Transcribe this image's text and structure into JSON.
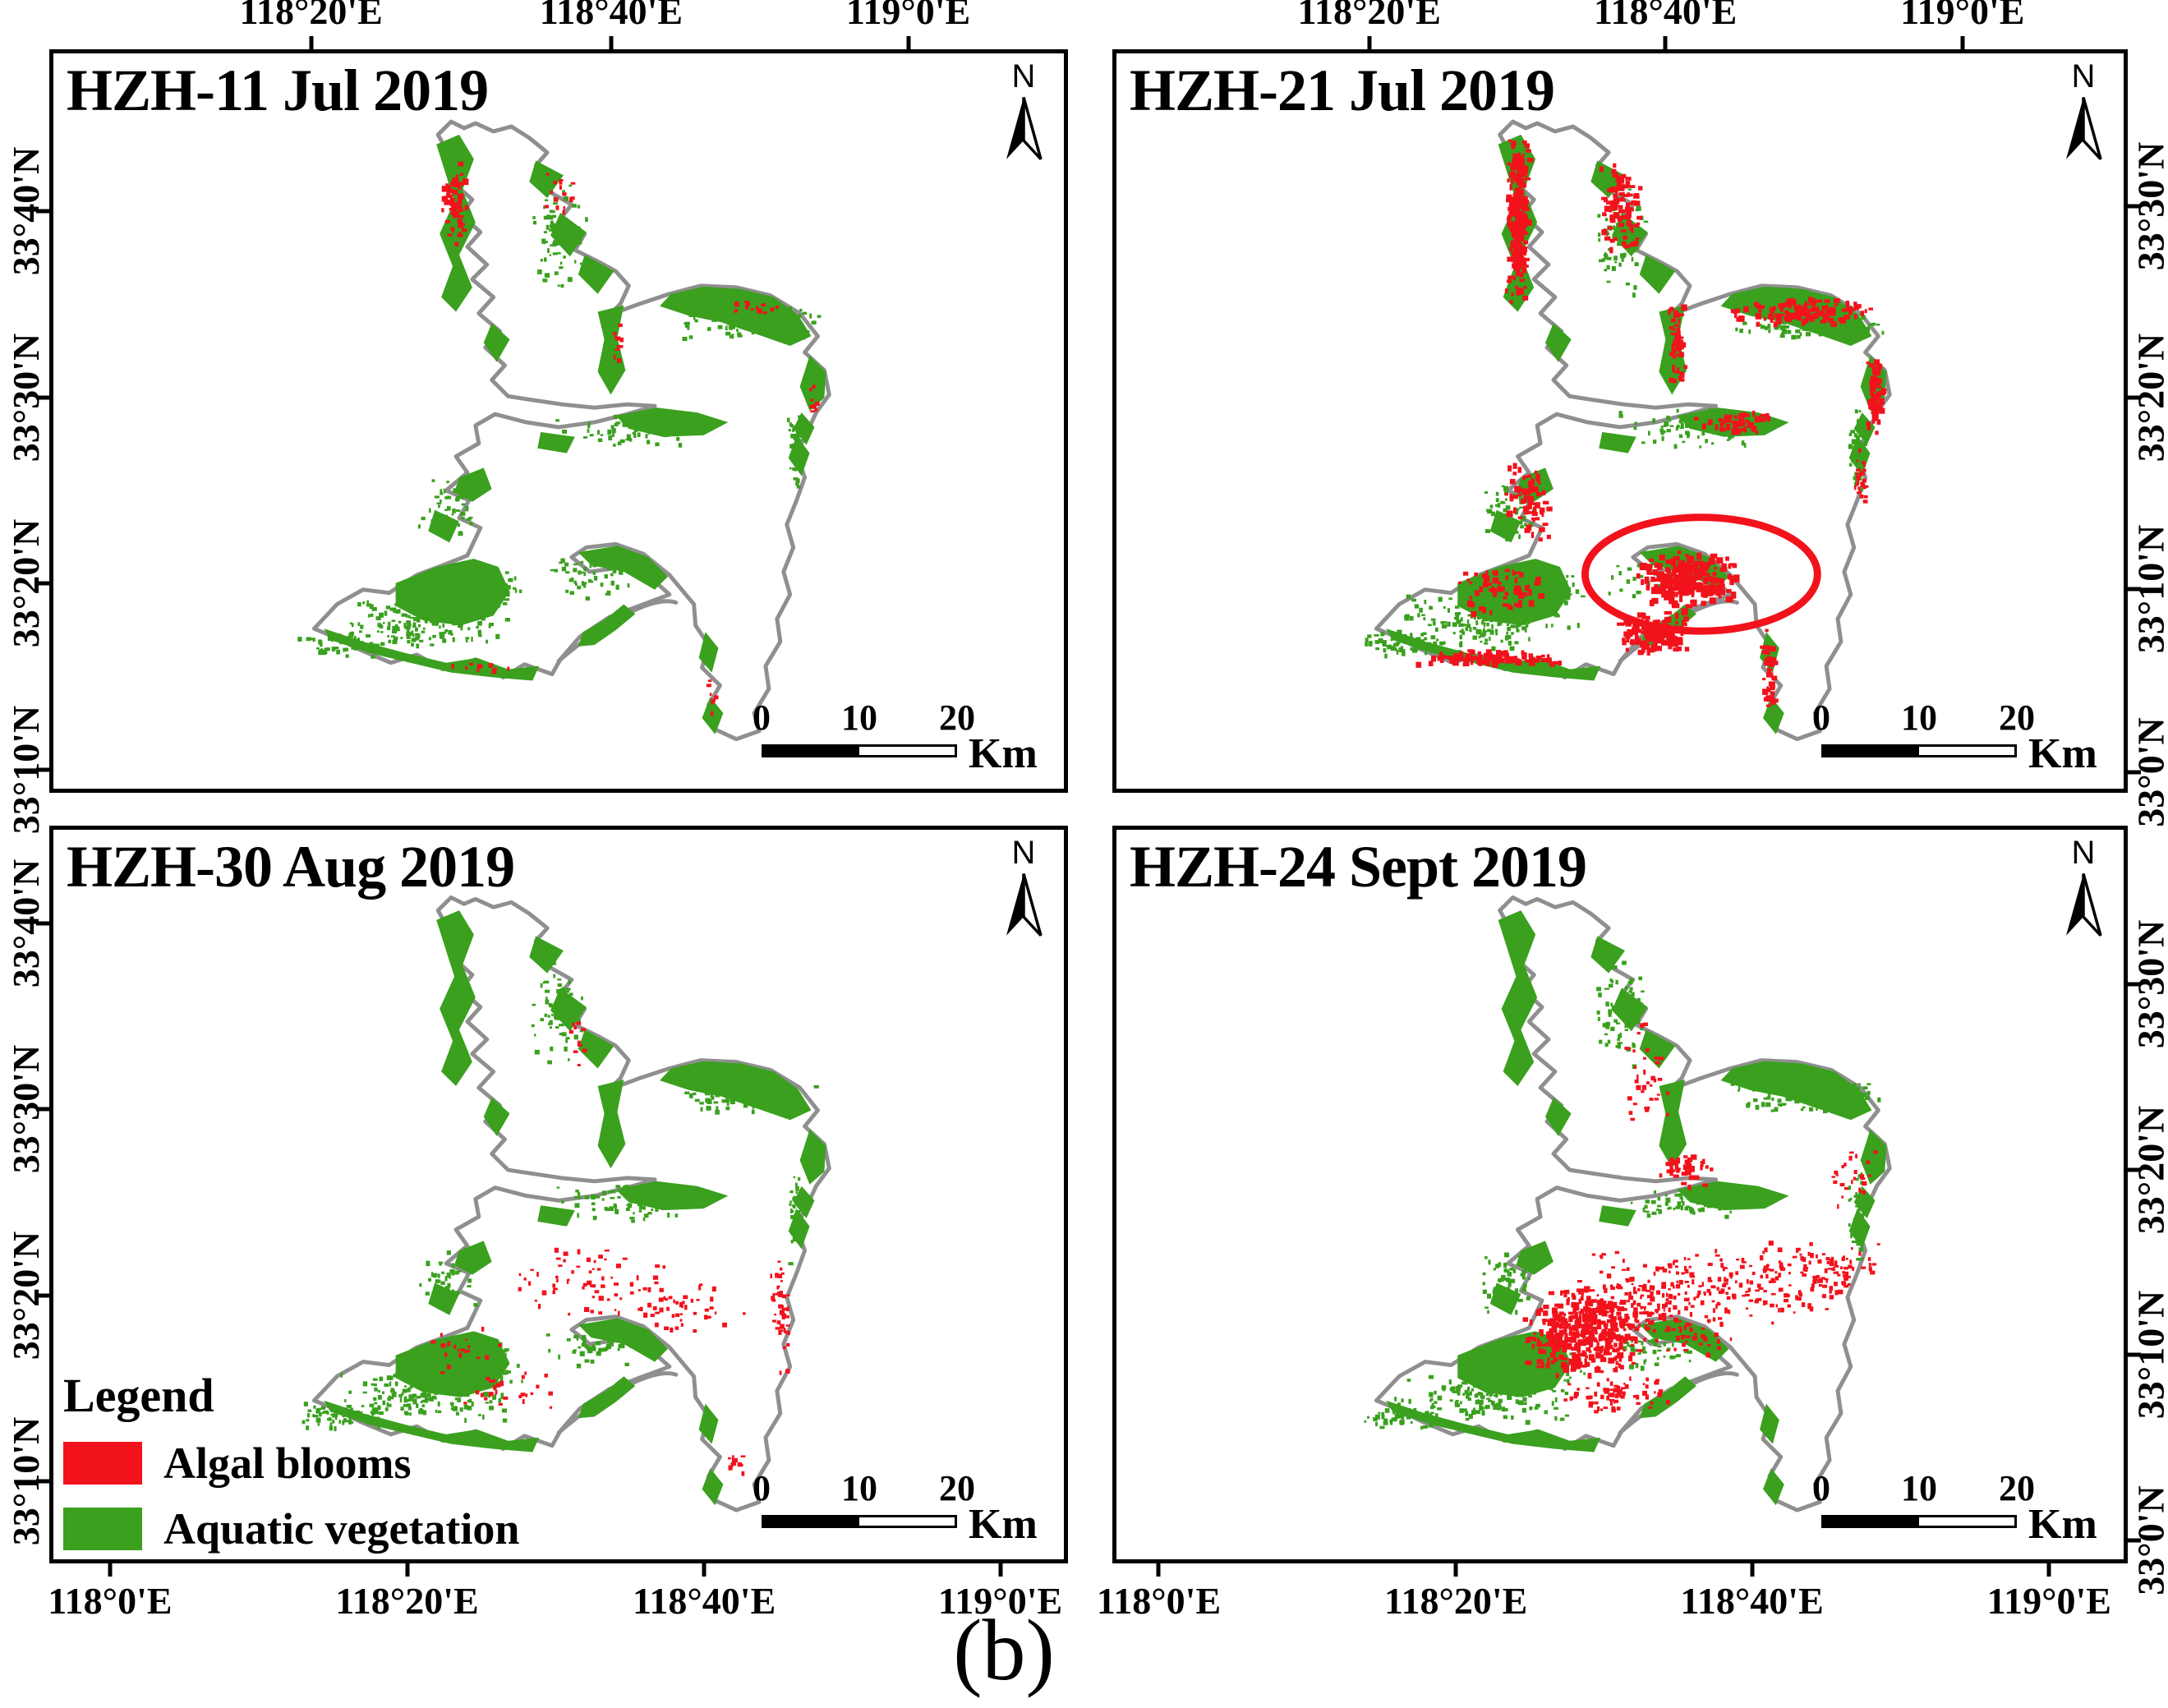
{
  "figure": {
    "label": "(b)"
  },
  "compass": {
    "label": "N"
  },
  "colors": {
    "algal_red": "#f2121c",
    "vegetation_green": "#3aa01e",
    "shoreline_gray": "#8f8f8f"
  },
  "legend": {
    "title": "Legend",
    "items": [
      {
        "label": "Algal blooms",
        "color": "#f2121c"
      },
      {
        "label": "Aquatic vegetation",
        "color": "#3aa01e"
      }
    ]
  },
  "scalebar": {
    "tick_labels": [
      "0",
      "10",
      "20"
    ],
    "unit": "Km"
  },
  "panels": [
    {
      "title": "HZH-11 Jul 2019",
      "top_ticks": [
        {
          "label": "118°20'E",
          "pos": 25.5
        },
        {
          "label": "118°40'E",
          "pos": 55.2
        },
        {
          "label": "119°0'E",
          "pos": 84.6
        }
      ],
      "left_ticks": [
        {
          "label": "33°40'N",
          "pos": 21.5
        },
        {
          "label": "33°30'N",
          "pos": 46.8
        },
        {
          "label": "33°20'N",
          "pos": 72.1
        },
        {
          "label": "33°10'N",
          "pos": 97.4
        }
      ]
    },
    {
      "title": "HZH-21 Jul 2019",
      "top_ticks": [
        {
          "label": "118°20'E",
          "pos": 25.1
        },
        {
          "label": "118°40'E",
          "pos": 54.5
        },
        {
          "label": "119°0'E",
          "pos": 84.0
        }
      ],
      "right_ticks": [
        {
          "label": "33°30'N",
          "pos": 20.8
        },
        {
          "label": "33°20'N",
          "pos": 46.8
        },
        {
          "label": "33°10'N",
          "pos": 72.8
        },
        {
          "label": "33°0'N",
          "pos": 97.8
        }
      ]
    },
    {
      "title": "HZH-30 Aug 2019",
      "bottom_ticks": [
        {
          "label": "118°0'E",
          "pos": 5.6
        },
        {
          "label": "118°20'E",
          "pos": 35.0
        },
        {
          "label": "118°40'E",
          "pos": 64.4
        },
        {
          "label": "119°0'E",
          "pos": 93.7
        }
      ],
      "left_ticks": [
        {
          "label": "33°40'N",
          "pos": 12.8
        },
        {
          "label": "33°30'N",
          "pos": 38.3
        },
        {
          "label": "33°20'N",
          "pos": 63.8
        },
        {
          "label": "33°10'N",
          "pos": 89.3
        }
      ]
    },
    {
      "title": "HZH-24 Sept 2019",
      "bottom_ticks": [
        {
          "label": "118°0'E",
          "pos": 4.2
        },
        {
          "label": "118°20'E",
          "pos": 33.7
        },
        {
          "label": "118°40'E",
          "pos": 63.1
        },
        {
          "label": "119°0'E",
          "pos": 92.6
        }
      ],
      "right_ticks": [
        {
          "label": "33°30'N",
          "pos": 21.2
        },
        {
          "label": "33°20'N",
          "pos": 46.6
        },
        {
          "label": "33°10'N",
          "pos": 72.0
        },
        {
          "label": "33°0'N",
          "pos": 97.4
        }
      ]
    }
  ]
}
